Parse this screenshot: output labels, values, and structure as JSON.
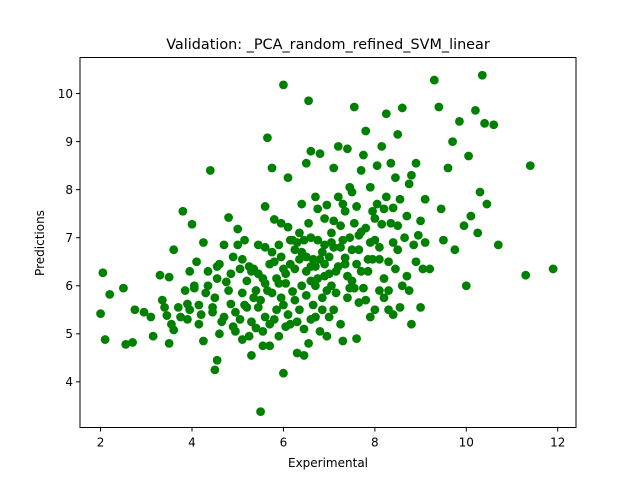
{
  "chart_data": {
    "type": "scatter",
    "title": "Validation: _PCA_random_refined_SVM_linear",
    "xlabel": "Experimental",
    "ylabel": "Predictions",
    "xlim": [
      1.55,
      12.4
    ],
    "ylim": [
      3.05,
      10.75
    ],
    "xticks": [
      2,
      4,
      6,
      8,
      10,
      12
    ],
    "yticks": [
      4,
      5,
      6,
      7,
      8,
      9,
      10
    ],
    "grid": false,
    "legend": "none",
    "marker_color": "#008000",
    "points": [
      [
        2.0,
        5.42
      ],
      [
        2.05,
        6.27
      ],
      [
        2.1,
        4.88
      ],
      [
        2.2,
        5.82
      ],
      [
        2.5,
        5.95
      ],
      [
        2.55,
        4.78
      ],
      [
        2.7,
        4.82
      ],
      [
        2.75,
        5.5
      ],
      [
        2.95,
        5.45
      ],
      [
        3.1,
        5.35
      ],
      [
        3.15,
        4.95
      ],
      [
        3.3,
        6.22
      ],
      [
        3.35,
        5.7
      ],
      [
        3.4,
        5.55
      ],
      [
        3.45,
        5.38
      ],
      [
        3.5,
        6.18
      ],
      [
        3.5,
        4.8
      ],
      [
        3.55,
        5.2
      ],
      [
        3.6,
        5.08
      ],
      [
        3.6,
        6.75
      ],
      [
        3.7,
        5.55
      ],
      [
        3.75,
        5.35
      ],
      [
        3.8,
        7.55
      ],
      [
        3.9,
        5.3
      ],
      [
        3.9,
        5.62
      ],
      [
        3.95,
        6.3
      ],
      [
        4.0,
        7.28
      ],
      [
        4.05,
        5.95
      ],
      [
        4.1,
        6.5
      ],
      [
        4.15,
        5.6
      ],
      [
        4.2,
        5.4
      ],
      [
        4.25,
        4.85
      ],
      [
        4.3,
        5.85
      ],
      [
        4.35,
        6.0
      ],
      [
        4.4,
        8.4
      ],
      [
        4.45,
        5.45
      ],
      [
        4.5,
        4.25
      ],
      [
        4.5,
        5.75
      ],
      [
        4.55,
        4.45
      ],
      [
        4.55,
        6.15
      ],
      [
        4.6,
        6.45
      ],
      [
        4.65,
        5.25
      ],
      [
        4.7,
        6.85
      ],
      [
        4.75,
        6.08
      ],
      [
        4.8,
        7.42
      ],
      [
        4.85,
        5.62
      ],
      [
        4.9,
        5.15
      ],
      [
        4.9,
        6.6
      ],
      [
        4.95,
        5.45
      ],
      [
        5.0,
        7.18
      ],
      [
        5.05,
        6.35
      ],
      [
        5.1,
        4.88
      ],
      [
        5.1,
        5.85
      ],
      [
        5.15,
        6.95
      ],
      [
        5.2,
        5.55
      ],
      [
        5.25,
        6.4
      ],
      [
        5.3,
        4.55
      ],
      [
        5.3,
        5.25
      ],
      [
        5.35,
        6.35
      ],
      [
        5.4,
        5.12
      ],
      [
        5.45,
        6.85
      ],
      [
        5.5,
        3.38
      ],
      [
        5.5,
        5.7
      ],
      [
        5.55,
        4.75
      ],
      [
        5.55,
        6.15
      ],
      [
        5.6,
        5.35
      ],
      [
        5.6,
        7.65
      ],
      [
        5.65,
        9.08
      ],
      [
        5.7,
        4.75
      ],
      [
        5.7,
        6.45
      ],
      [
        5.75,
        5.85
      ],
      [
        5.75,
        8.45
      ],
      [
        5.8,
        7.38
      ],
      [
        5.85,
        5.5
      ],
      [
        5.9,
        6.05
      ],
      [
        5.9,
        6.85
      ],
      [
        5.95,
        7.3
      ],
      [
        6.0,
        4.18
      ],
      [
        6.0,
        5.6
      ],
      [
        6.0,
        10.18
      ],
      [
        6.05,
        6.25
      ],
      [
        6.1,
        7.22
      ],
      [
        6.1,
        8.25
      ],
      [
        6.15,
        5.2
      ],
      [
        6.2,
        5.88
      ],
      [
        6.25,
        6.75
      ],
      [
        6.3,
        4.6
      ],
      [
        6.35,
        5.5
      ],
      [
        6.35,
        7.1
      ],
      [
        6.4,
        7.7
      ],
      [
        6.45,
        4.55
      ],
      [
        6.5,
        6.3
      ],
      [
        6.5,
        8.55
      ],
      [
        6.55,
        9.85
      ],
      [
        6.6,
        5.3
      ],
      [
        6.6,
        8.8
      ],
      [
        6.65,
        6.55
      ],
      [
        6.7,
        7.85
      ],
      [
        6.75,
        6.95
      ],
      [
        6.8,
        8.75
      ],
      [
        6.85,
        5.75
      ],
      [
        6.9,
        6.2
      ],
      [
        6.95,
        7.68
      ],
      [
        7.0,
        5.35
      ],
      [
        7.05,
        6.9
      ],
      [
        7.1,
        8.45
      ],
      [
        7.15,
        5.85
      ],
      [
        7.2,
        8.9
      ],
      [
        7.25,
        7.25
      ],
      [
        7.3,
        4.85
      ],
      [
        7.35,
        6.58
      ],
      [
        7.4,
        8.85
      ],
      [
        7.45,
        5.95
      ],
      [
        7.5,
        7.95
      ],
      [
        7.55,
        9.72
      ],
      [
        7.6,
        6.45
      ],
      [
        7.65,
        5.65
      ],
      [
        7.7,
        7.12
      ],
      [
        7.75,
        8.72
      ],
      [
        7.8,
        9.22
      ],
      [
        7.85,
        6.55
      ],
      [
        7.9,
        5.35
      ],
      [
        7.95,
        7.55
      ],
      [
        8.0,
        6.95
      ],
      [
        8.05,
        8.5
      ],
      [
        8.1,
        5.9
      ],
      [
        8.15,
        7.28
      ],
      [
        8.2,
        6.15
      ],
      [
        8.25,
        9.58
      ],
      [
        8.3,
        5.5
      ],
      [
        8.35,
        8.55
      ],
      [
        8.4,
        7.62
      ],
      [
        8.45,
        6.35
      ],
      [
        8.5,
        9.15
      ],
      [
        8.55,
        5.55
      ],
      [
        8.6,
        9.7
      ],
      [
        8.65,
        7.0
      ],
      [
        8.7,
        6.2
      ],
      [
        8.75,
        8.12
      ],
      [
        8.8,
        5.2
      ],
      [
        8.85,
        6.85
      ],
      [
        8.9,
        8.55
      ],
      [
        8.95,
        7.05
      ],
      [
        9.0,
        5.55
      ],
      [
        9.05,
        6.35
      ],
      [
        9.1,
        7.8
      ],
      [
        9.2,
        6.35
      ],
      [
        9.3,
        10.28
      ],
      [
        9.4,
        9.72
      ],
      [
        9.45,
        7.6
      ],
      [
        9.5,
        6.95
      ],
      [
        9.6,
        8.45
      ],
      [
        9.7,
        9.0
      ],
      [
        9.75,
        6.75
      ],
      [
        9.85,
        9.42
      ],
      [
        9.95,
        7.25
      ],
      [
        10.0,
        6.0
      ],
      [
        10.05,
        8.7
      ],
      [
        10.1,
        7.45
      ],
      [
        10.2,
        9.65
      ],
      [
        10.25,
        7.1
      ],
      [
        10.3,
        7.95
      ],
      [
        10.35,
        10.38
      ],
      [
        10.4,
        9.38
      ],
      [
        10.45,
        7.7
      ],
      [
        10.6,
        9.35
      ],
      [
        10.7,
        6.85
      ],
      [
        11.3,
        6.22
      ],
      [
        11.4,
        8.5
      ],
      [
        11.9,
        6.35
      ],
      [
        4.25,
        6.9
      ],
      [
        4.35,
        6.3
      ],
      [
        4.6,
        5.0
      ],
      [
        4.8,
        5.9
      ],
      [
        5.05,
        5.3
      ],
      [
        5.2,
        6.1
      ],
      [
        5.4,
        5.9
      ],
      [
        5.6,
        6.8
      ],
      [
        5.8,
        6.5
      ],
      [
        5.95,
        6.6
      ],
      [
        6.05,
        5.15
      ],
      [
        6.15,
        6.45
      ],
      [
        6.25,
        5.7
      ],
      [
        6.3,
        6.9
      ],
      [
        6.4,
        6.0
      ],
      [
        6.45,
        5.1
      ],
      [
        6.55,
        7.3
      ],
      [
        6.6,
        6.1
      ],
      [
        6.65,
        5.6
      ],
      [
        6.7,
        6.4
      ],
      [
        6.75,
        7.6
      ],
      [
        6.8,
        5.05
      ],
      [
        6.85,
        6.7
      ],
      [
        6.9,
        7.4
      ],
      [
        6.95,
        5.9
      ],
      [
        7.0,
        6.6
      ],
      [
        7.05,
        7.1
      ],
      [
        7.1,
        5.5
      ],
      [
        7.15,
        6.3
      ],
      [
        7.2,
        7.85
      ],
      [
        7.25,
        5.2
      ],
      [
        7.3,
        6.95
      ],
      [
        7.35,
        7.55
      ],
      [
        7.4,
        5.75
      ],
      [
        7.45,
        8.05
      ],
      [
        7.5,
        6.1
      ],
      [
        7.55,
        7.3
      ],
      [
        7.6,
        4.9
      ],
      [
        7.65,
        6.75
      ],
      [
        7.7,
        8.4
      ],
      [
        7.75,
        5.95
      ],
      [
        7.8,
        7.2
      ],
      [
        7.85,
        6.3
      ],
      [
        7.9,
        8.05
      ],
      [
        7.95,
        6.55
      ],
      [
        8.0,
        5.5
      ],
      [
        8.05,
        7.7
      ],
      [
        8.1,
        6.8
      ],
      [
        8.15,
        8.9
      ],
      [
        8.2,
        5.75
      ],
      [
        8.25,
        7.85
      ],
      [
        8.3,
        6.5
      ],
      [
        8.35,
        7.3
      ],
      [
        8.4,
        5.4
      ],
      [
        8.45,
        8.25
      ],
      [
        8.5,
        6.75
      ],
      [
        8.55,
        7.8
      ],
      [
        8.6,
        6.0
      ],
      [
        8.7,
        7.45
      ],
      [
        8.75,
        5.9
      ],
      [
        8.8,
        8.3
      ],
      [
        8.9,
        6.5
      ],
      [
        9.0,
        7.35
      ],
      [
        9.1,
        6.9
      ],
      [
        3.85,
        5.9
      ],
      [
        3.95,
        5.5
      ],
      [
        4.05,
        6.0
      ],
      [
        4.15,
        5.2
      ],
      [
        4.45,
        5.55
      ],
      [
        4.55,
        6.4
      ],
      [
        4.7,
        5.35
      ],
      [
        4.85,
        6.25
      ],
      [
        4.95,
        5.05
      ],
      [
        5.15,
        5.6
      ],
      [
        5.25,
        4.95
      ],
      [
        5.35,
        5.75
      ],
      [
        5.45,
        5.55
      ],
      [
        5.55,
        5.05
      ],
      [
        5.65,
        5.9
      ],
      [
        5.7,
        5.2
      ],
      [
        5.85,
        6.15
      ],
      [
        5.9,
        4.95
      ],
      [
        6.0,
        6.35
      ],
      [
        6.1,
        5.4
      ],
      [
        6.2,
        6.95
      ],
      [
        6.3,
        5.25
      ],
      [
        6.4,
        6.7
      ],
      [
        6.5,
        5.8
      ],
      [
        6.55,
        4.8
      ],
      [
        6.6,
        7.0
      ],
      [
        6.7,
        5.35
      ],
      [
        6.75,
        6.15
      ],
      [
        6.85,
        5.5
      ],
      [
        6.9,
        6.45
      ],
      [
        6.95,
        4.95
      ],
      [
        7.05,
        6.0
      ],
      [
        7.1,
        6.8
      ],
      [
        7.2,
        6.4
      ],
      [
        7.3,
        7.7
      ],
      [
        7.4,
        6.2
      ],
      [
        7.45,
        7.0
      ],
      [
        7.55,
        5.95
      ],
      [
        7.6,
        7.65
      ],
      [
        7.7,
        6.3
      ],
      [
        7.8,
        5.7
      ],
      [
        7.9,
        6.9
      ],
      [
        8.0,
        7.4
      ],
      [
        8.1,
        6.55
      ],
      [
        8.2,
        7.6
      ],
      [
        8.3,
        5.9
      ],
      [
        8.4,
        6.9
      ],
      [
        8.5,
        7.25
      ],
      [
        5.0,
        6.85
      ],
      [
        5.1,
        6.55
      ],
      [
        5.3,
        6.3
      ],
      [
        5.45,
        6.25
      ],
      [
        5.6,
        6.05
      ],
      [
        5.75,
        6.7
      ],
      [
        5.8,
        5.3
      ],
      [
        5.95,
        5.75
      ],
      [
        6.05,
        6.05
      ],
      [
        6.15,
        6.95
      ],
      [
        6.25,
        6.35
      ],
      [
        6.35,
        6.55
      ],
      [
        6.45,
        6.95
      ],
      [
        6.5,
        6.6
      ],
      [
        6.6,
        6.4
      ],
      [
        6.7,
        6.0
      ],
      [
        6.8,
        6.55
      ],
      [
        6.9,
        6.85
      ],
      [
        7.0,
        6.25
      ],
      [
        7.1,
        7.35
      ],
      [
        7.25,
        6.8
      ],
      [
        7.35,
        6.45
      ],
      [
        7.5,
        6.75
      ],
      [
        7.65,
        7.05
      ]
    ]
  }
}
